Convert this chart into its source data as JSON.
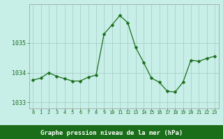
{
  "x": [
    0,
    1,
    2,
    3,
    4,
    5,
    6,
    7,
    8,
    9,
    10,
    11,
    12,
    13,
    14,
    15,
    16,
    17,
    18,
    19,
    20,
    21,
    22,
    23
  ],
  "y": [
    1033.75,
    1033.82,
    1034.0,
    1033.88,
    1033.8,
    1033.72,
    1033.72,
    1033.85,
    1033.92,
    1035.3,
    1035.6,
    1035.92,
    1035.68,
    1034.85,
    1034.35,
    1033.82,
    1033.68,
    1033.38,
    1033.35,
    1033.68,
    1034.42,
    1034.38,
    1034.48,
    1034.55
  ],
  "line_color": "#1a6e1a",
  "marker": "D",
  "marker_size": 2.5,
  "plot_bg_color": "#c8eee8",
  "fig_bg_color": "#c8eee8",
  "xlabel_bg_color": "#1a6e1a",
  "xlabel_text_color": "#ffffff",
  "tick_color": "#1a6e1a",
  "grid_color": "#a0ccc0",
  "yticks": [
    1033,
    1034,
    1035
  ],
  "xtick_labels": [
    "0",
    "1",
    "2",
    "3",
    "4",
    "5",
    "6",
    "7",
    "8",
    "9",
    "10",
    "11",
    "12",
    "13",
    "14",
    "15",
    "16",
    "17",
    "18",
    "19",
    "20",
    "21",
    "22",
    "23"
  ],
  "xlabel": "Graphe pression niveau de la mer (hPa)",
  "ylim": [
    1032.8,
    1036.3
  ],
  "xlim": [
    -0.5,
    23.5
  ]
}
